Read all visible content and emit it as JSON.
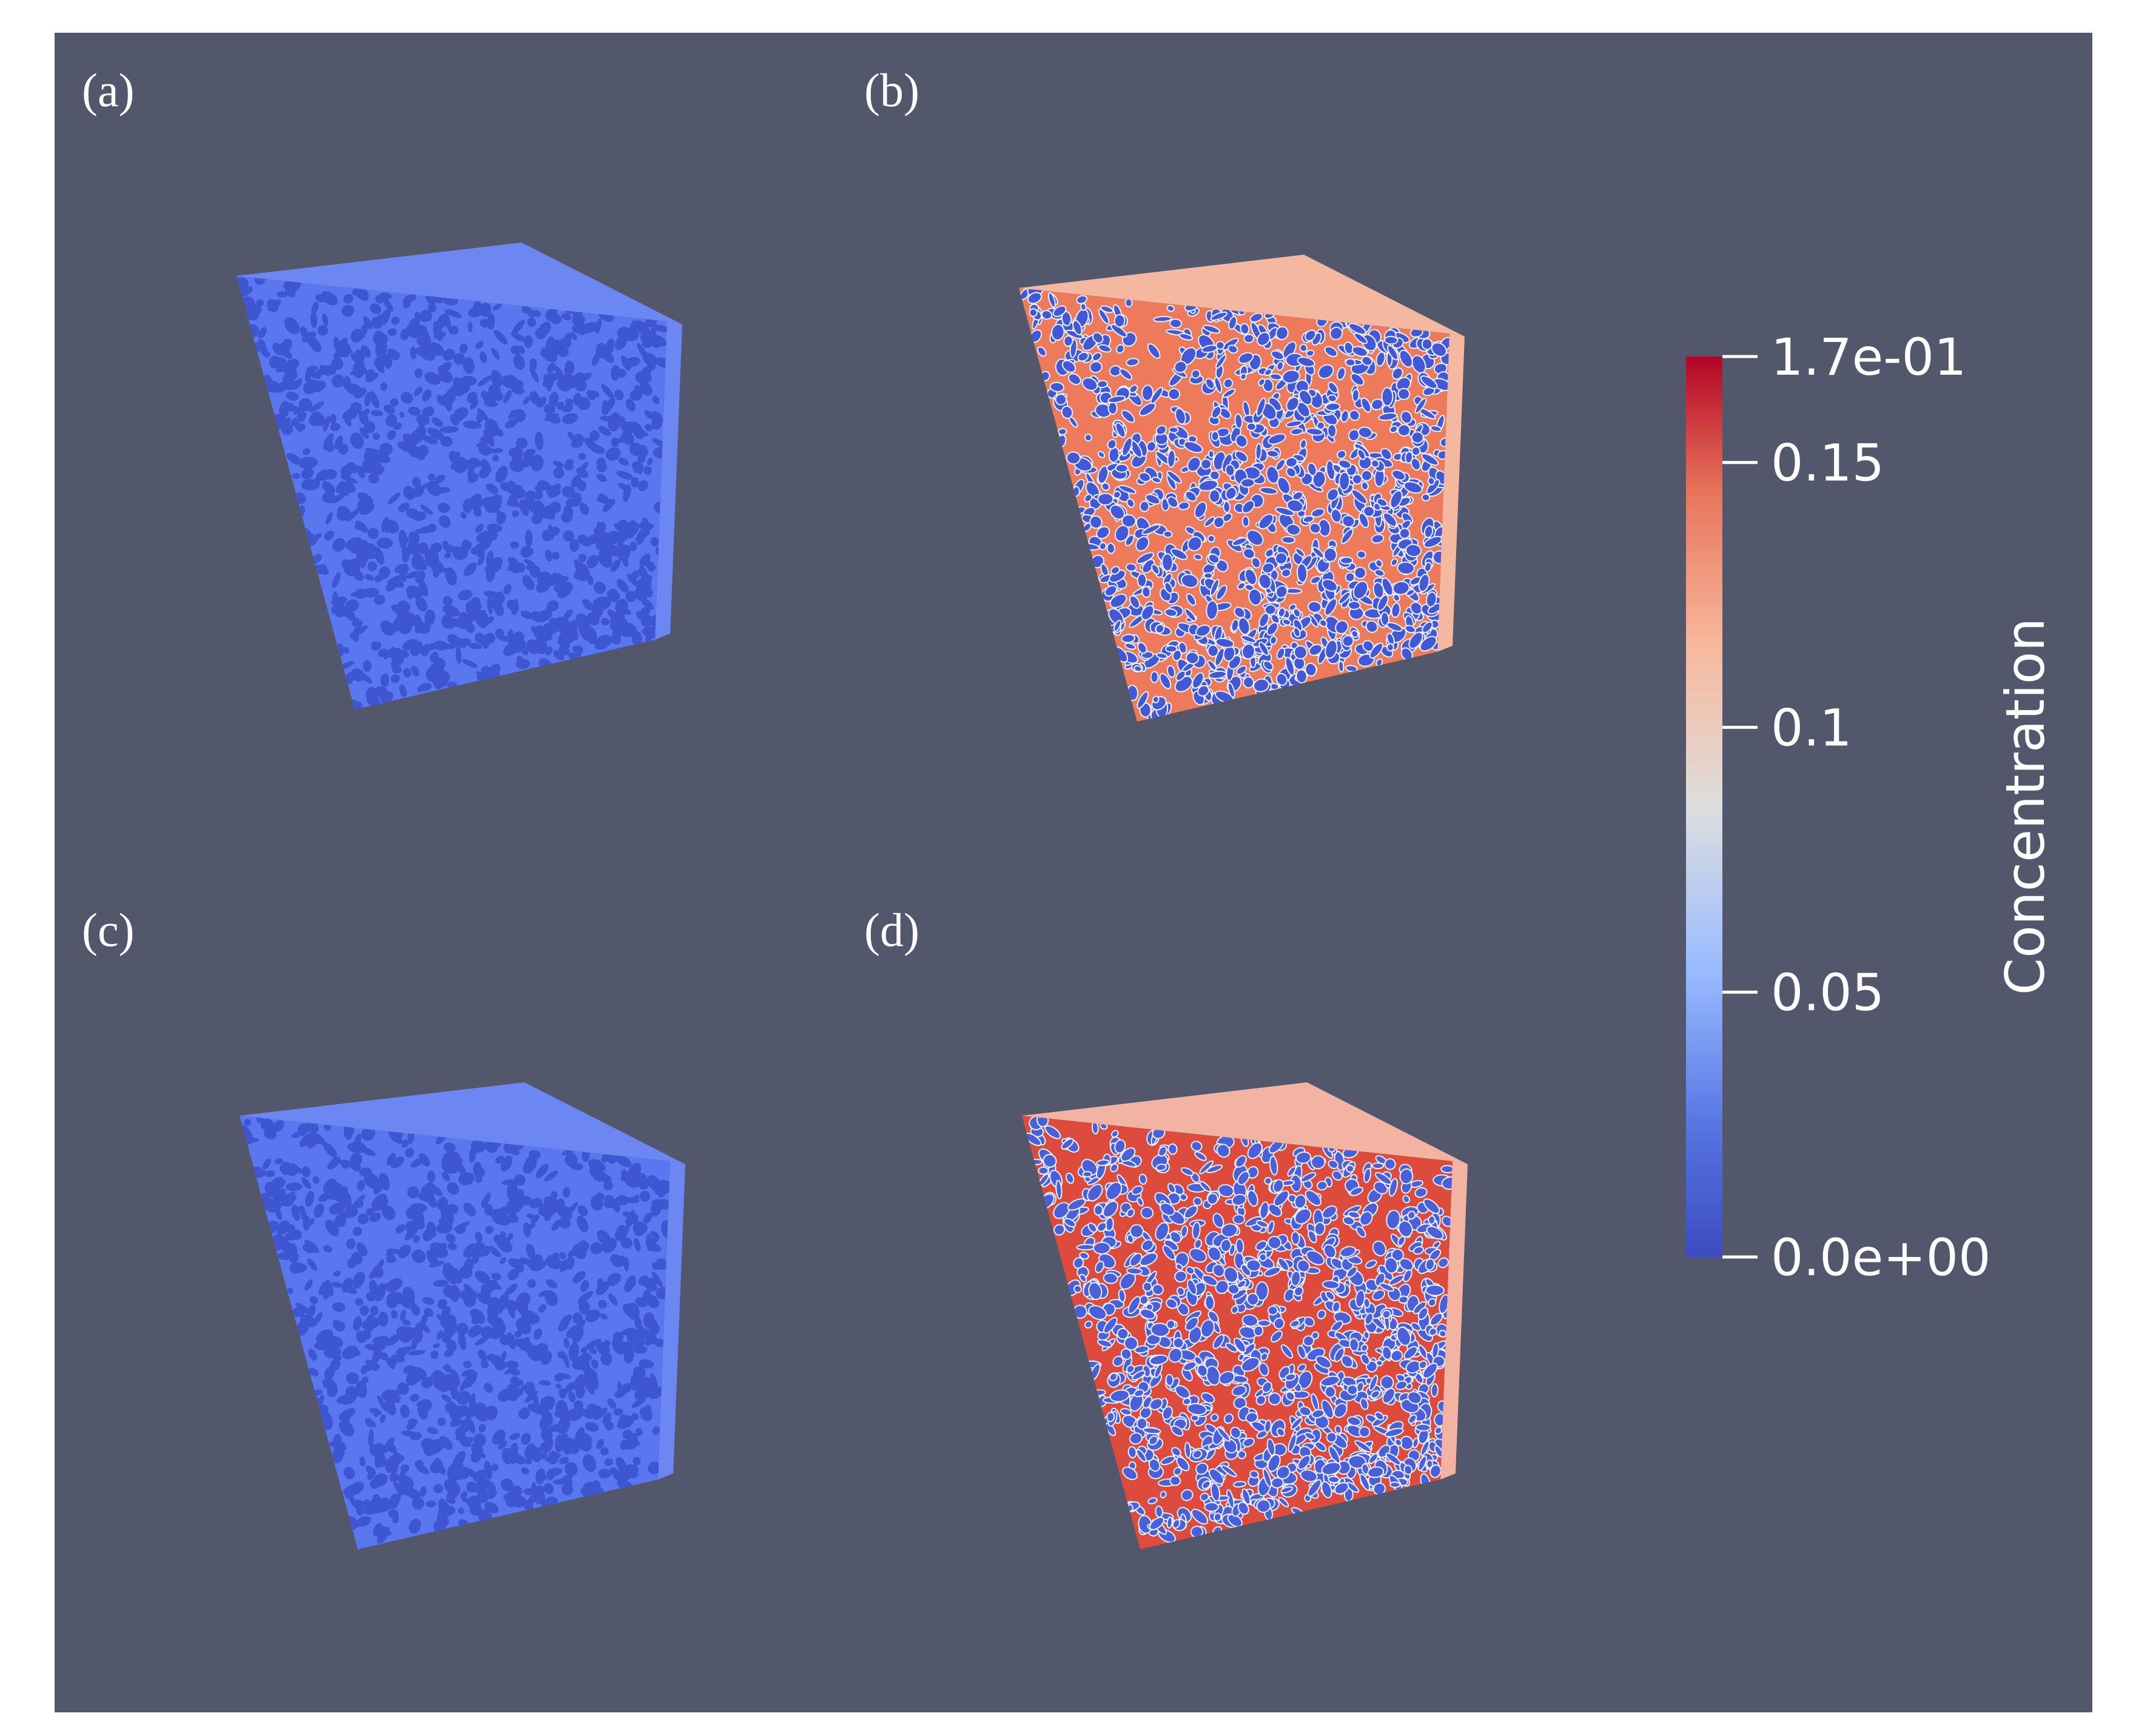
{
  "colors": {
    "background": "#52576b",
    "page": "#ffffff",
    "cold": "#3b4cc0",
    "cold_light": "#5a77f0",
    "neutral": "#dddddd",
    "warm": "#ec7a5b",
    "warm_dark": "#b40426"
  },
  "panels": [
    {
      "label": "(a)",
      "state": "low",
      "base_color": "#5a77f0",
      "spot_color": "#3f56d2",
      "edge_color": "#6c86f2"
    },
    {
      "label": "(b)",
      "state": "high",
      "base_color": "#ec7a5b",
      "spot_color": "#4358d6",
      "edge_color": "#f4b7a0"
    },
    {
      "label": "(c)",
      "state": "low",
      "base_color": "#5a77f0",
      "spot_color": "#3f56d2",
      "edge_color": "#6c86f2"
    },
    {
      "label": "(d)",
      "state": "high",
      "base_color": "#dd4b3c",
      "spot_color": "#4a60da",
      "edge_color": "#f2b3a2"
    }
  ],
  "colorbar": {
    "title": "Concentration",
    "min": 0.0,
    "max": 0.17,
    "ticks": [
      {
        "label": "1.7e-01",
        "value": 0.17
      },
      {
        "label": "0.15",
        "value": 0.15
      },
      {
        "label": "0.1",
        "value": 0.1
      },
      {
        "label": "0.05",
        "value": 0.05
      },
      {
        "label": "0.0e+00",
        "value": 0.0
      }
    ]
  }
}
